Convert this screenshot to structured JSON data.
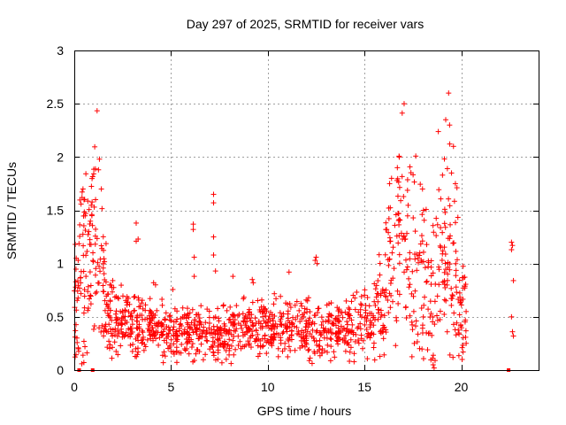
{
  "chart_data": {
    "type": "scatter",
    "title": "Day 297 of 2025, SRMTID for receiver vars",
    "xlabel": "GPS time / hours",
    "ylabel": "SRMTID / TECUs",
    "xlim": [
      0,
      24
    ],
    "ylim": [
      0,
      3
    ],
    "grid": true,
    "marker": "+",
    "color": "#ff0000",
    "x_ticks": [
      0,
      5,
      10,
      15,
      20
    ],
    "y_ticks": [
      0,
      0.5,
      1,
      1.5,
      2,
      2.5,
      3
    ],
    "x_tick_labels": [
      "0",
      "5",
      "10",
      "15",
      "20"
    ],
    "y_tick_labels": [
      "0",
      "0.5",
      "1",
      "1.5",
      "2",
      "2.5",
      "3"
    ],
    "envelope": [
      [
        0.0,
        0.55,
        0.35
      ],
      [
        0.3,
        0.85,
        0.45
      ],
      [
        0.6,
        1.0,
        0.4
      ],
      [
        1.0,
        1.15,
        0.45
      ],
      [
        1.3,
        1.1,
        0.45
      ],
      [
        1.7,
        0.5,
        0.2
      ],
      [
        2.5,
        0.45,
        0.15
      ],
      [
        3.5,
        0.42,
        0.14
      ],
      [
        4.5,
        0.38,
        0.13
      ],
      [
        5.5,
        0.37,
        0.13
      ],
      [
        6.5,
        0.33,
        0.12
      ],
      [
        7.5,
        0.33,
        0.12
      ],
      [
        8.5,
        0.4,
        0.13
      ],
      [
        9.5,
        0.37,
        0.12
      ],
      [
        10.5,
        0.4,
        0.13
      ],
      [
        11.5,
        0.38,
        0.13
      ],
      [
        12.5,
        0.37,
        0.14
      ],
      [
        13.5,
        0.37,
        0.13
      ],
      [
        14.5,
        0.4,
        0.14
      ],
      [
        15.5,
        0.5,
        0.18
      ],
      [
        16.0,
        0.7,
        0.3
      ],
      [
        16.5,
        1.15,
        0.45
      ],
      [
        17.0,
        1.5,
        0.45
      ],
      [
        17.5,
        1.1,
        0.5
      ],
      [
        18.0,
        0.8,
        0.4
      ],
      [
        18.5,
        0.6,
        0.4
      ],
      [
        19.0,
        1.3,
        0.55
      ],
      [
        19.5,
        0.9,
        0.45
      ],
      [
        20.0,
        0.6,
        0.25
      ],
      [
        20.3,
        0.45,
        0.2
      ]
    ],
    "highlights": [
      [
        17.05,
        2.5
      ],
      [
        18.0,
        1.7
      ],
      [
        18.05,
        1.5
      ],
      [
        19.35,
        2.6
      ],
      [
        19.4,
        2.3
      ],
      [
        19.2,
        2.35
      ],
      [
        19.6,
        2.1
      ],
      [
        16.8,
        2.0
      ],
      [
        16.7,
        1.9
      ],
      [
        1.3,
        1.98
      ],
      [
        1.25,
        1.88
      ],
      [
        1.4,
        1.7
      ],
      [
        1.1,
        1.6
      ],
      [
        7.2,
        1.65
      ],
      [
        7.2,
        1.57
      ],
      [
        7.2,
        1.25
      ],
      [
        7.2,
        1.08
      ],
      [
        7.3,
        0.93
      ],
      [
        6.15,
        1.37
      ],
      [
        6.15,
        1.32
      ],
      [
        6.2,
        1.06
      ],
      [
        6.2,
        0.88
      ],
      [
        3.2,
        1.38
      ],
      [
        3.3,
        1.23
      ],
      [
        3.2,
        1.21
      ],
      [
        0.1,
        1.05
      ],
      [
        0.2,
        1.03
      ],
      [
        0.05,
        1.18
      ],
      [
        0.45,
        1.7
      ],
      [
        0.4,
        1.62
      ],
      [
        0.5,
        1.6
      ],
      [
        12.5,
        1.06
      ],
      [
        12.45,
        1.03
      ],
      [
        12.55,
        1.0
      ],
      [
        11.1,
        0.92
      ],
      [
        4.1,
        0.82
      ],
      [
        4.2,
        0.8
      ],
      [
        8.2,
        0.88
      ],
      [
        9.2,
        0.85
      ],
      [
        9.25,
        0.82
      ],
      [
        16.3,
        1.75
      ],
      [
        16.4,
        1.8
      ],
      [
        19.5,
        1.85
      ],
      [
        19.7,
        1.75
      ],
      [
        0.45,
        0.14
      ],
      [
        0.5,
        0.27
      ],
      [
        0.55,
        0.22
      ],
      [
        18.55,
        0.05
      ],
      [
        18.6,
        0.02
      ],
      [
        18.65,
        0.09
      ],
      [
        20.05,
        0.1
      ],
      [
        20.1,
        0.17
      ],
      [
        17.45,
        0.45
      ],
      [
        17.55,
        0.55
      ],
      [
        18.2,
        0.35
      ],
      [
        22.6,
        1.2
      ],
      [
        22.65,
        1.17
      ],
      [
        22.6,
        1.13
      ],
      [
        22.7,
        0.84
      ],
      [
        22.6,
        0.5
      ],
      [
        22.65,
        0.36
      ],
      [
        22.7,
        0.32
      ]
    ],
    "zero_markers": [
      0.25,
      0.95,
      22.45
    ],
    "point_count": 1400
  }
}
